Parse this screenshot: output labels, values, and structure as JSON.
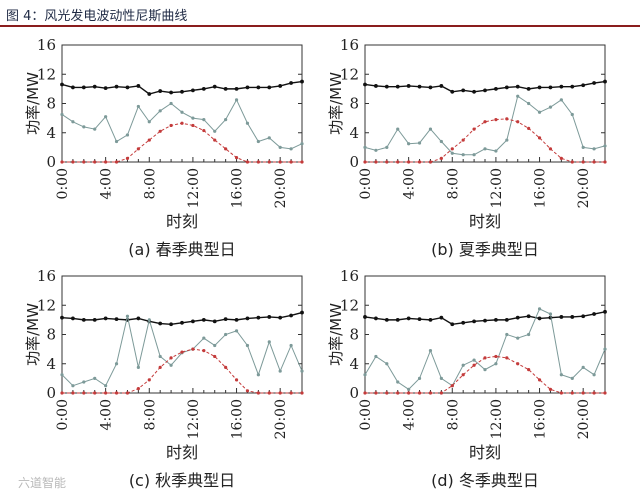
{
  "figure_title": "图 4：风光发电波动性尼斯曲线",
  "watermark": "六道智能",
  "colors": {
    "wind": "#7d9a99",
    "solar": "#c43b3b",
    "load": "#111111",
    "axis": "#333333"
  },
  "chart_data": [
    {
      "type": "line",
      "caption": "(a) 春季典型日",
      "xlabel": "时刻",
      "ylabel": "功率/MW",
      "xlim": [
        0,
        22
      ],
      "ylim": [
        0,
        16
      ],
      "xticks": [
        "0:00",
        "4:00",
        "8:00",
        "12:00",
        "16:00",
        "20:00"
      ],
      "yticks": [
        0,
        4,
        8,
        12,
        16
      ],
      "x": [
        0,
        1,
        2,
        3,
        4,
        5,
        6,
        7,
        8,
        9,
        10,
        11,
        12,
        13,
        14,
        15,
        16,
        17,
        18,
        19,
        20,
        21,
        22
      ],
      "series": [
        {
          "key": "load",
          "values": [
            10.6,
            10.2,
            10.2,
            10.3,
            10.1,
            10.3,
            10.2,
            10.4,
            9.3,
            9.7,
            9.5,
            9.6,
            9.8,
            10.0,
            10.3,
            10.0,
            10.0,
            10.2,
            10.2,
            10.2,
            10.4,
            10.8,
            11.0
          ]
        },
        {
          "key": "wind",
          "values": [
            6.5,
            5.5,
            4.8,
            4.5,
            6.2,
            2.8,
            3.7,
            7.6,
            5.5,
            7.0,
            8.0,
            6.8,
            6.0,
            5.8,
            4.2,
            5.8,
            8.5,
            5.3,
            2.8,
            3.3,
            2.0,
            1.8,
            2.5
          ]
        },
        {
          "key": "solar",
          "values": [
            0,
            0,
            0,
            0,
            0,
            0,
            0.5,
            1.8,
            3.0,
            4.2,
            5.0,
            5.3,
            5.0,
            4.3,
            3.0,
            1.8,
            0.6,
            0,
            0,
            0,
            0,
            0,
            0
          ]
        }
      ]
    },
    {
      "type": "line",
      "caption": "(b) 夏季典型日",
      "xlabel": "时刻",
      "ylabel": "功率/MW",
      "xlim": [
        0,
        22
      ],
      "ylim": [
        0,
        16
      ],
      "xticks": [
        "0:00",
        "4:00",
        "8:00",
        "12:00",
        "16:00",
        "20:00"
      ],
      "yticks": [
        0,
        4,
        8,
        12,
        16
      ],
      "x": [
        0,
        1,
        2,
        3,
        4,
        5,
        6,
        7,
        8,
        9,
        10,
        11,
        12,
        13,
        14,
        15,
        16,
        17,
        18,
        19,
        20,
        21,
        22
      ],
      "series": [
        {
          "key": "load",
          "values": [
            10.6,
            10.4,
            10.3,
            10.3,
            10.4,
            10.3,
            10.2,
            10.4,
            9.6,
            9.8,
            9.6,
            9.8,
            10.0,
            10.2,
            10.3,
            10.0,
            10.2,
            10.2,
            10.3,
            10.3,
            10.5,
            10.8,
            11.0
          ]
        },
        {
          "key": "wind",
          "values": [
            2.0,
            1.6,
            2.0,
            4.5,
            2.5,
            2.6,
            4.5,
            2.8,
            1.2,
            1.0,
            1.0,
            1.8,
            1.5,
            3.0,
            9.0,
            8.0,
            6.8,
            7.5,
            8.5,
            6.5,
            2.0,
            1.8,
            2.2
          ]
        },
        {
          "key": "solar",
          "values": [
            0,
            0,
            0,
            0,
            0,
            0,
            0,
            0.5,
            1.8,
            3.0,
            4.5,
            5.5,
            5.8,
            5.9,
            5.5,
            4.6,
            3.3,
            1.8,
            0.5,
            0,
            0,
            0,
            0
          ]
        }
      ]
    },
    {
      "type": "line",
      "caption": "(c) 秋季典型日",
      "xlabel": "时刻",
      "ylabel": "功率/MW",
      "xlim": [
        0,
        22
      ],
      "ylim": [
        0,
        16
      ],
      "xticks": [
        "0:00",
        "4:00",
        "8:00",
        "12:00",
        "16:00",
        "20:00"
      ],
      "yticks": [
        0,
        4,
        8,
        12,
        16
      ],
      "x": [
        0,
        1,
        2,
        3,
        4,
        5,
        6,
        7,
        8,
        9,
        10,
        11,
        12,
        13,
        14,
        15,
        16,
        17,
        18,
        19,
        20,
        21,
        22
      ],
      "series": [
        {
          "key": "load",
          "values": [
            10.3,
            10.2,
            10.0,
            10.0,
            10.2,
            10.1,
            10.0,
            10.2,
            9.8,
            9.5,
            9.4,
            9.6,
            9.8,
            10.0,
            9.8,
            10.1,
            10.0,
            10.2,
            10.3,
            10.4,
            10.3,
            10.6,
            11.0
          ]
        },
        {
          "key": "wind",
          "values": [
            2.5,
            1.0,
            1.5,
            2.0,
            1.0,
            4.0,
            10.5,
            3.5,
            10.0,
            5.0,
            3.8,
            5.5,
            6.0,
            7.5,
            6.5,
            8.0,
            8.5,
            6.5,
            2.5,
            7.0,
            3.0,
            6.5,
            3.0
          ]
        },
        {
          "key": "solar",
          "values": [
            0,
            0,
            0,
            0,
            0,
            0,
            0,
            0.6,
            1.8,
            3.5,
            4.8,
            5.6,
            6.0,
            5.8,
            5.0,
            3.5,
            1.8,
            0.3,
            0,
            0,
            0,
            0,
            0
          ]
        }
      ]
    },
    {
      "type": "line",
      "caption": "(d) 冬季典型日",
      "xlabel": "时刻",
      "ylabel": "功率/MW",
      "xlim": [
        0,
        22
      ],
      "ylim": [
        0,
        16
      ],
      "xticks": [
        "0:00",
        "4:00",
        "8:00",
        "12:00",
        "16:00",
        "20:00"
      ],
      "yticks": [
        0,
        4,
        8,
        12,
        16
      ],
      "x": [
        0,
        1,
        2,
        3,
        4,
        5,
        6,
        7,
        8,
        9,
        10,
        11,
        12,
        13,
        14,
        15,
        16,
        17,
        18,
        19,
        20,
        21,
        22
      ],
      "series": [
        {
          "key": "load",
          "values": [
            10.4,
            10.2,
            10.0,
            10.0,
            10.2,
            10.1,
            10.0,
            10.3,
            9.4,
            9.6,
            9.8,
            9.9,
            10.0,
            10.0,
            10.3,
            10.5,
            10.2,
            10.3,
            10.4,
            10.4,
            10.5,
            10.8,
            11.1
          ]
        },
        {
          "key": "wind",
          "values": [
            2.5,
            5.0,
            4.0,
            1.5,
            0.5,
            2.0,
            5.8,
            2.0,
            1.0,
            3.8,
            4.5,
            3.2,
            4.0,
            8.0,
            7.5,
            8.0,
            11.5,
            10.8,
            2.5,
            2.0,
            3.5,
            2.5,
            6.0
          ]
        },
        {
          "key": "solar",
          "values": [
            0,
            0,
            0,
            0,
            0,
            0,
            0,
            0,
            1.0,
            2.5,
            3.8,
            4.8,
            5.0,
            4.8,
            4.0,
            3.2,
            1.8,
            0.5,
            0,
            0,
            0,
            0,
            0
          ]
        }
      ]
    }
  ]
}
